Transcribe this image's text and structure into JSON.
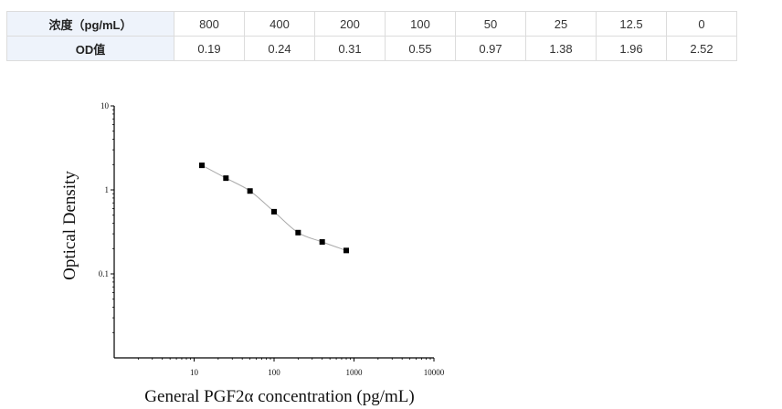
{
  "table": {
    "rows": [
      {
        "header": "浓度（pg/mL）",
        "cells": [
          "800",
          "400",
          "200",
          "100",
          "50",
          "25",
          "12.5",
          "0"
        ]
      },
      {
        "header": "OD值",
        "cells": [
          "0.19",
          "0.24",
          "0.31",
          "0.55",
          "0.97",
          "1.38",
          "1.96",
          "2.52"
        ]
      }
    ]
  },
  "chart_data": {
    "type": "scatter",
    "title": "",
    "xlabel": "General PGF2α concentration (pg/mL)",
    "ylabel": "Optical Density",
    "x_scale": "log",
    "y_scale": "log",
    "xlim": [
      1,
      10000
    ],
    "ylim": [
      0.01,
      10
    ],
    "x_ticks": [
      "10",
      "100",
      "1000",
      "10000"
    ],
    "y_ticks": [
      "10",
      "1",
      "0.1"
    ],
    "grid": false,
    "series": [
      {
        "x": [
          12.5,
          25,
          50,
          100,
          200,
          400,
          800
        ],
        "y": [
          1.96,
          1.38,
          0.97,
          0.55,
          0.31,
          0.24,
          0.19
        ],
        "marker": "square",
        "fit_curve": true
      }
    ],
    "colors": {
      "marker": "#000000",
      "curve": "#aaaaaa",
      "axis": "#000000"
    }
  }
}
